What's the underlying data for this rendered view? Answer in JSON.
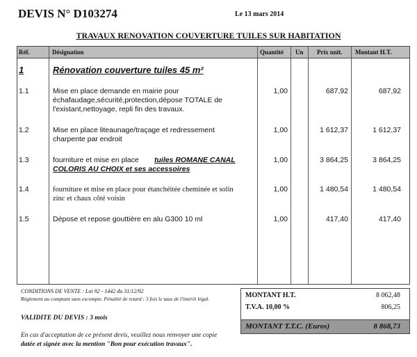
{
  "header": {
    "title": "DEVIS N° D103274",
    "date": "Le 13 mars 2014",
    "subject": "TRAVAUX RENOVATION COUVERTURE TUILES SUR HABITATION"
  },
  "table": {
    "columns": [
      "Réf.",
      "Désignation",
      "Quantité",
      "Un",
      "Prix unit.",
      "Montant H.T."
    ],
    "section": {
      "ref": "1",
      "label": "Rénovation couverture tuiles 45 m²"
    },
    "rows": [
      {
        "ref": "1.1",
        "lines": [
          "Mise en place demande en mairie pour",
          "échafaudage,sécurité,protection,dépose TOTALE de",
          "l'existant,nettoyage, repli fin des travaux."
        ],
        "qty": "1,00",
        "price": "687,92",
        "amount": "687,92"
      },
      {
        "ref": "1.2",
        "lines": [
          "Mise en place liteaunage/traçage et redressement",
          "charpente par endroit"
        ],
        "qty": "1,00",
        "price": "1 612,37",
        "amount": "1 612,37"
      },
      {
        "ref": "1.3",
        "lines": [
          "fourniture et mise en place"
        ],
        "emphasis": [
          "tuiles ROMANE CANAL",
          "COLORIS AU CHOIX et ses accessoires"
        ],
        "qty": "1,00",
        "price": "3 864,25",
        "amount": "3 864,25"
      },
      {
        "ref": "1.4",
        "lines": [
          "fourniture et mise en place pour étanchéitée cheminée et solin",
          "zinc et chaux côté voisin"
        ],
        "qty": "1,00",
        "price": "1 480,54",
        "amount": "1 480,54"
      },
      {
        "ref": "1.5",
        "lines": [
          "Dépose et repose gouttière en alu G300  10 ml"
        ],
        "qty": "1,00",
        "price": "417,40",
        "amount": "417,40"
      }
    ]
  },
  "footer": {
    "conditions": "CONDITIONS DE VENTE : Loi 92 - 1442 du 31/12/92",
    "payment": "Règlement au comptant sans escompte. Pénalité de retard : 3 fois le taux de l'intérêt légal.",
    "validity": "VALIDITE DU DEVIS : 3 mois",
    "acceptance": "En  cas d'acceptation de ce présent devis, veuillez nous renvoyer une copie",
    "acceptance_emphasis": "datée et signée avec la mention \"Bon pour exécution travaux\"."
  },
  "totals": [
    {
      "label": "MONTANT H.T.",
      "value": "8 062,48"
    },
    {
      "label": "T.V.A. 10,00 %",
      "value": "806,25"
    },
    {
      "label": "MONTANT T.T.C. (Euros)",
      "value": "8 868,73"
    }
  ]
}
